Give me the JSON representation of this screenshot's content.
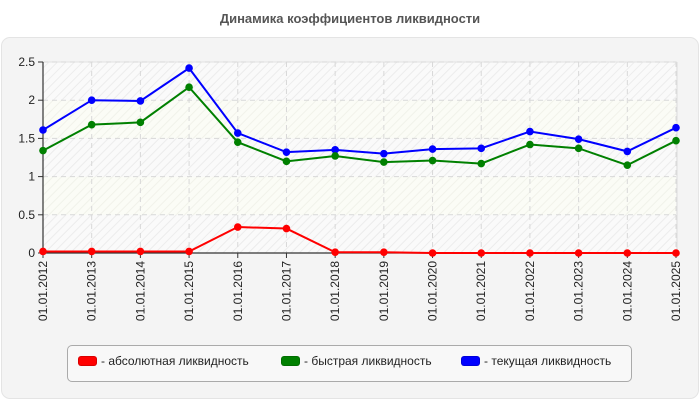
{
  "title": "Динамика коэффициентов ликвидности",
  "chart_data": {
    "type": "line",
    "title": "Динамика коэффициентов ликвидности",
    "xlabel": "",
    "ylabel": "",
    "ylim": [
      0,
      2.5
    ],
    "yticks": [
      "0",
      "0.5",
      "1",
      "1.5",
      "2",
      "2.5"
    ],
    "grid": true,
    "legend_position": "bottom",
    "categories": [
      "01.01.2012",
      "01.01.2013",
      "01.01.2014",
      "01.01.2015",
      "01.01.2016",
      "01.01.2017",
      "01.01.2018",
      "01.01.2019",
      "01.01.2020",
      "01.01.2021",
      "01.01.2022",
      "01.01.2023",
      "01.01.2024",
      "01.01.2025"
    ],
    "series": [
      {
        "name": "абсолютная ликвидность",
        "color": "#ff0000",
        "values": [
          0.02,
          0.02,
          0.02,
          0.02,
          0.34,
          0.32,
          0.01,
          0.01,
          0.0,
          0.0,
          0.0,
          0.0,
          0.0,
          0.0
        ]
      },
      {
        "name": "быстрая ликвидность",
        "color": "#008000",
        "values": [
          1.34,
          1.68,
          1.71,
          2.17,
          1.45,
          1.2,
          1.27,
          1.19,
          1.21,
          1.17,
          1.42,
          1.37,
          1.15,
          1.47
        ]
      },
      {
        "name": "текущая ликвидность",
        "color": "#0000ff",
        "values": [
          1.61,
          2.0,
          1.99,
          2.42,
          1.57,
          1.32,
          1.35,
          1.3,
          1.36,
          1.37,
          1.59,
          1.49,
          1.33,
          1.64
        ]
      }
    ]
  },
  "legend": {
    "items": [
      {
        "label": "- абсолютная ликвидность",
        "color": "#ff0000"
      },
      {
        "label": "- быстрая ликвидность",
        "color": "#008000"
      },
      {
        "label": "- текущая ликвидность",
        "color": "#0000ff"
      }
    ]
  }
}
